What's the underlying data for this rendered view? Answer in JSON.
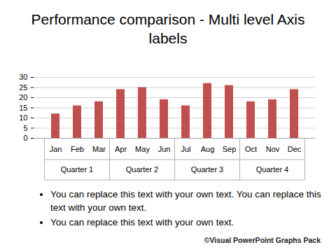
{
  "chart_data": {
    "type": "bar",
    "title": "Performance comparison - Multi level Axis labels",
    "categories": [
      "Jan",
      "Feb",
      "Mar",
      "Apr",
      "May",
      "Jun",
      "Jul",
      "Aug",
      "Sep",
      "Oct",
      "Nov",
      "Dec"
    ],
    "groups": [
      "Quarter 1",
      "Quarter 1",
      "Quarter 1",
      "Quarter 2",
      "Quarter 2",
      "Quarter 2",
      "Quarter 3",
      "Quarter 3",
      "Quarter 3",
      "Quarter 4",
      "Quarter 4",
      "Quarter 4"
    ],
    "values": [
      12,
      16,
      18,
      24,
      25,
      19,
      16,
      27,
      26,
      18,
      19,
      24
    ],
    "color": "#c0504d",
    "ylim": [
      0,
      30
    ],
    "yticks": [
      0,
      5,
      10,
      15,
      20,
      25,
      30
    ],
    "grid": true
  },
  "bullets": [
    "You can replace this  text with your own text. You can replace this  text with your own text.",
    "You can replace this  text with your own text."
  ],
  "credit": "©Visual PowerPoint Graphs Pack"
}
